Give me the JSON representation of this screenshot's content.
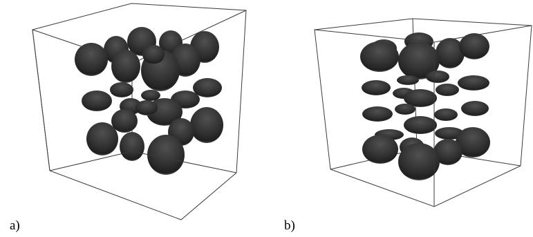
{
  "panels": [
    {
      "label": "a)"
    },
    {
      "label": "b)"
    }
  ],
  "colors": {
    "particle": "#3a3a3a",
    "particle_dark": "#1e1e1e",
    "box_edge": "#3a3a3a",
    "background": "#ffffff"
  }
}
